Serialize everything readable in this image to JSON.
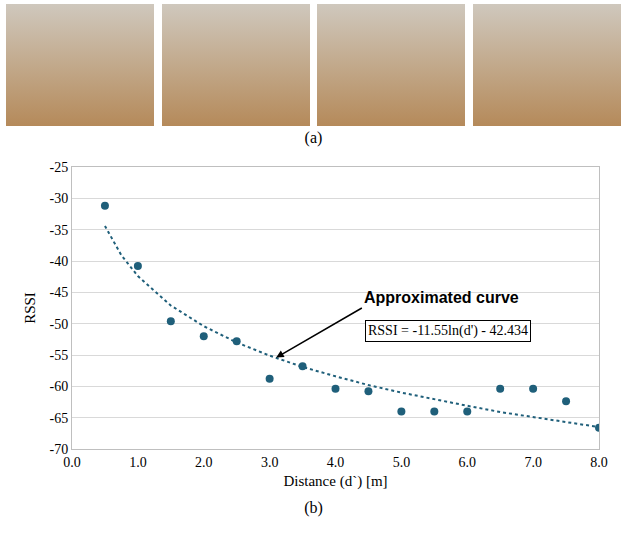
{
  "panel_labels": [
    "(a)",
    "(b)"
  ],
  "chart_data": {
    "type": "scatter",
    "x_label": "Distance (d`) [m]",
    "y_label": "RSSI",
    "series": [
      {
        "type": "scatter",
        "color": "#1f5f7a",
        "marker": "circle",
        "x": [
          0.5,
          1.0,
          1.5,
          2.0,
          2.5,
          3.0,
          3.5,
          4.0,
          4.5,
          5.0,
          5.5,
          6.0,
          6.5,
          7.0,
          7.5,
          8.0
        ],
        "values": [
          -31.2,
          -40.8,
          -49.6,
          -52.0,
          -52.8,
          -58.8,
          -56.8,
          -60.4,
          -60.8,
          -64.0,
          -64.0,
          -64.0,
          -60.4,
          -60.4,
          -62.4,
          -66.6
        ]
      },
      {
        "type": "line",
        "color": "#1f5f7a",
        "line_style": "dotted",
        "x": [
          0.5,
          0.75,
          1.0,
          1.5,
          2.0,
          2.5,
          3.0,
          3.5,
          4.0,
          4.5,
          5.0,
          5.5,
          6.0,
          6.5,
          7.0,
          7.5,
          8.0
        ],
        "values": [
          -34.4,
          -39.1,
          -42.4,
          -47.1,
          -50.4,
          -53.0,
          -55.1,
          -56.9,
          -58.4,
          -59.8,
          -61.0,
          -62.1,
          -63.1,
          -64.1,
          -64.9,
          -65.7,
          -66.5
        ]
      }
    ],
    "annotations": [
      {
        "text": "Approximated curve",
        "x": 3.1,
        "y": -55.4
      },
      {
        "text": "RSSI = -11.55ln(d') - 42.434"
      }
    ],
    "xlim": [
      0,
      8
    ],
    "xticks": [
      {
        "value": 0,
        "label": "0.0"
      },
      {
        "value": 1,
        "label": "1.0"
      },
      {
        "value": 2,
        "label": "2.0"
      },
      {
        "value": 3,
        "label": "3.0"
      },
      {
        "value": 4,
        "label": "4.0"
      },
      {
        "value": 5,
        "label": "5.0"
      },
      {
        "value": 6,
        "label": "6.0"
      },
      {
        "value": 7,
        "label": "7.0"
      },
      {
        "value": 8,
        "label": "8.0"
      }
    ],
    "ylim": [
      -70,
      -25
    ],
    "yticks": [
      -70,
      -65,
      -60,
      -55,
      -50,
      -45,
      -40,
      -35,
      -30,
      -25
    ],
    "grid": true
  }
}
